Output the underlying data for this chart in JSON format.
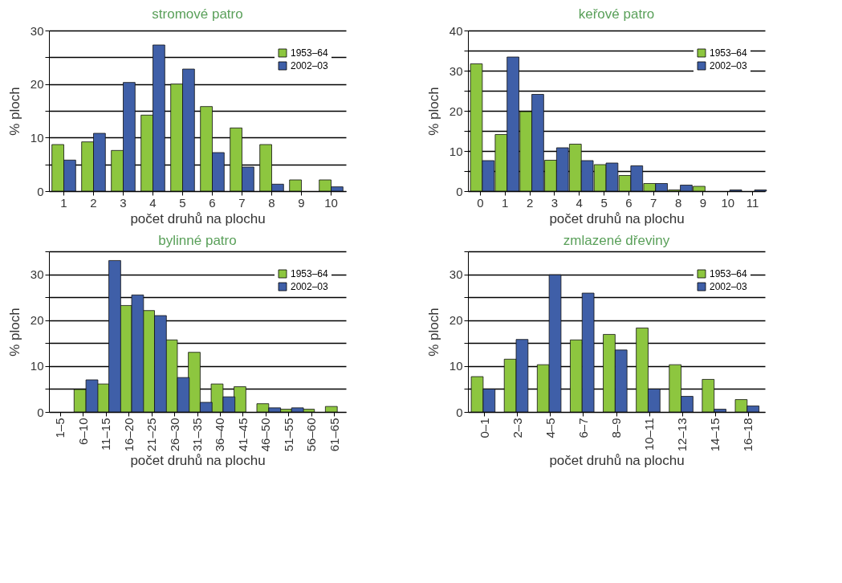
{
  "chart_data": [
    {
      "type": "bar",
      "title": "stromové patro",
      "xlabel": "počet druhů na plochu",
      "ylabel": "% ploch",
      "categories": [
        "1",
        "2",
        "3",
        "4",
        "5",
        "6",
        "7",
        "8",
        "9",
        "10"
      ],
      "series": [
        {
          "name": "1953–64",
          "color": "#8dc63f",
          "values": [
            8.7,
            9.2,
            7.6,
            14.2,
            20,
            15.8,
            11.8,
            8.7,
            2.1,
            2.1
          ]
        },
        {
          "name": "2002–03",
          "color": "#3f5fa8",
          "values": [
            5.8,
            10.8,
            20.3,
            27.3,
            22.8,
            7.2,
            4.5,
            1.3,
            null,
            0.8
          ]
        }
      ],
      "ylim": [
        0,
        30
      ],
      "yticks": [
        0,
        {
          "value": 5,
          "label": null
        },
        10,
        {
          "value": 15,
          "label": null
        },
        20,
        {
          "value": 25,
          "label": null
        },
        30
      ],
      "grid": "y",
      "legend": "top right"
    },
    {
      "type": "bar",
      "title": "keřové patro",
      "xlabel": "počet druhů na plochu",
      "ylabel": "% ploch",
      "categories": [
        "0",
        "1",
        "2",
        "3",
        "4",
        "5",
        "6",
        "7",
        "8",
        "9",
        "10",
        "11"
      ],
      "series": [
        {
          "name": "1953–64",
          "color": "#8dc63f",
          "values": [
            31.7,
            14.1,
            19.8,
            7.7,
            11.7,
            6.6,
            3.9,
            1.9,
            0.3,
            1.2,
            null,
            null
          ]
        },
        {
          "name": "2002–03",
          "color": "#3f5fa8",
          "values": [
            7.6,
            33.4,
            24.1,
            10.8,
            7.6,
            7.0,
            6.3,
            1.9,
            1.5,
            null,
            0.3,
            0.3
          ]
        }
      ],
      "ylim": [
        0,
        40
      ],
      "yticks": [
        0,
        {
          "value": 5,
          "label": null
        },
        10,
        {
          "value": 15,
          "label": null
        },
        20,
        {
          "value": 25,
          "label": null
        },
        30,
        {
          "value": 35,
          "label": null
        },
        40
      ],
      "grid": "y",
      "legend": "top right"
    },
    {
      "type": "bar",
      "title": "bylinné patro",
      "xlabel": "počet druhů na plochu",
      "ylabel": "% ploch",
      "categories": [
        "1–5",
        "6–10",
        "11–15",
        "16–20",
        "21–25",
        "26–30",
        "31–35",
        "36–40",
        "41–45",
        "46–50",
        "51–55",
        "56–60",
        "61–65"
      ],
      "series": [
        {
          "name": "1953–64",
          "color": "#8dc63f",
          "values": [
            null,
            4.9,
            6.1,
            23.2,
            22.1,
            15.7,
            13.0,
            6.1,
            5.5,
            1.8,
            0.6,
            0.6,
            1.2
          ]
        },
        {
          "name": "2002–03",
          "color": "#3f5fa8",
          "values": [
            null,
            7.0,
            33.0,
            25.5,
            21.0,
            7.5,
            2.1,
            3.3,
            null,
            0.9,
            0.9,
            null,
            null
          ]
        }
      ],
      "ylim": [
        0,
        35
      ],
      "yticks": [
        0,
        {
          "value": 5,
          "label": null
        },
        10,
        {
          "value": 15,
          "label": null
        },
        20,
        {
          "value": 25,
          "label": null
        },
        30,
        {
          "value": 35,
          "label": null
        }
      ],
      "grid": "y",
      "legend": "top right"
    },
    {
      "type": "bar",
      "title": "zmlazené dřeviny",
      "xlabel": "počet druhů na plochu",
      "ylabel": "% ploch",
      "categories": [
        "0–1",
        "2–3",
        "4–5",
        "6–7",
        "8–9",
        "10–11",
        "12–13",
        "14–15",
        "16–18"
      ],
      "series": [
        {
          "name": "1953–64",
          "color": "#8dc63f",
          "values": [
            7.7,
            11.5,
            10.3,
            15.7,
            16.9,
            18.3,
            10.3,
            7.1,
            2.7
          ]
        },
        {
          "name": "2002–03",
          "color": "#3f5fa8",
          "values": [
            5.0,
            15.8,
            29.9,
            25.9,
            13.5,
            5.0,
            3.4,
            0.6,
            1.3
          ]
        }
      ],
      "ylim": [
        0,
        35
      ],
      "yticks": [
        0,
        {
          "value": 5,
          "label": null
        },
        10,
        {
          "value": 15,
          "label": null
        },
        20,
        {
          "value": 25,
          "label": null
        },
        30,
        {
          "value": 35,
          "label": null
        }
      ],
      "grid": "y",
      "legend": "top right"
    }
  ]
}
